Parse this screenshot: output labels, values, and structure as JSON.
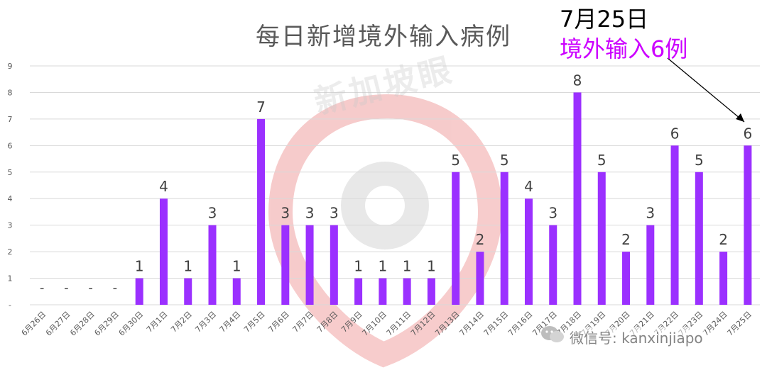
{
  "title": "每日新增境外输入病例",
  "annotation": {
    "date": "7月25日",
    "text": "境外输入6例"
  },
  "watermark": "新加坡眼",
  "credit": "微信号: kanxinjiapo",
  "colors": {
    "bar": "#9b30ff",
    "grid": "#d9d9d9",
    "label": "#404040",
    "tick": "#595959",
    "annotation": "#cc00ff"
  },
  "chart_data": {
    "type": "bar",
    "title": "每日新增境外输入病例",
    "categories": [
      "6月26日",
      "6月27日",
      "6月28日",
      "6月29日",
      "6月30日",
      "7月1日",
      "7月2日",
      "7月3日",
      "7月4日",
      "7月5日",
      "7月6日",
      "7月7日",
      "7月8日",
      "7月9日",
      "7月10日",
      "7月11日",
      "7月12日",
      "7月13日",
      "7月14日",
      "7月15日",
      "7月16日",
      "7月17日",
      "7月18日",
      "7月19日",
      "7月20日",
      "7月21日",
      "7月22日",
      "7月23日",
      "7月24日",
      "7月25日"
    ],
    "values": [
      0,
      0,
      0,
      0,
      1,
      4,
      1,
      3,
      1,
      7,
      3,
      3,
      3,
      1,
      1,
      1,
      1,
      5,
      2,
      5,
      4,
      3,
      8,
      5,
      2,
      3,
      6,
      5,
      2,
      6
    ],
    "data_labels": [
      "-",
      "-",
      "-",
      "-",
      "1",
      "4",
      "1",
      "3",
      "1",
      "7",
      "3",
      "3",
      "3",
      "1",
      "1",
      "1",
      "1",
      "5",
      "2",
      "5",
      "4",
      "3",
      "8",
      "5",
      "2",
      "3",
      "6",
      "5",
      "2",
      "6"
    ],
    "yticks": [
      "-",
      "1",
      "2",
      "3",
      "4",
      "5",
      "6",
      "7",
      "8",
      "9"
    ],
    "ylim": [
      0,
      9
    ],
    "grid": true,
    "xlabel": "",
    "ylabel": ""
  }
}
